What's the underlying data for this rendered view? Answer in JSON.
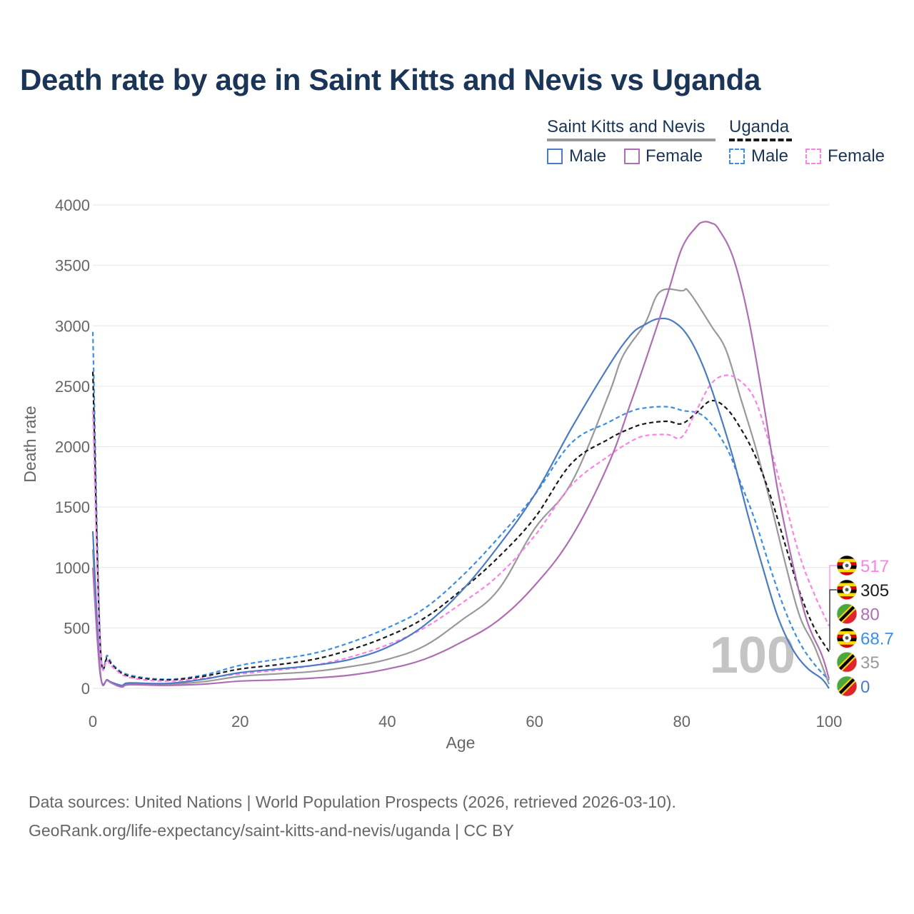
{
  "title": "Death rate by age in Saint Kitts and Nevis vs Uganda",
  "legend": {
    "group1": "Saint Kitts and Nevis",
    "group2": "Uganda",
    "male": "Male",
    "female": "Female"
  },
  "source": {
    "line1": "Data sources: United Nations | World Population Prospects (2026, retrieved 2026-03-10).",
    "line2": "GeoRank.org/life-expectancy/saint-kitts-and-nevis/uganda | CC BY"
  },
  "colors": {
    "title": "#1b3558",
    "skn_male": "#4a7bc4",
    "skn_female": "#b06db5",
    "skn_total": "#999999",
    "uga_male": "#3a8ee8",
    "uga_female": "#ff80e8",
    "uga_total": "#1a1a1a"
  },
  "chart_data": {
    "type": "line",
    "title": "Death rate by age in Saint Kitts and Nevis vs Uganda",
    "xlabel": "Age",
    "ylabel": "Death rate",
    "xlim": [
      0,
      100
    ],
    "ylim": [
      0,
      4000
    ],
    "xticks": [
      0,
      20,
      40,
      60,
      80,
      100
    ],
    "yticks": [
      0,
      500,
      1000,
      1500,
      2000,
      2500,
      3000,
      3500,
      4000
    ],
    "year_watermark": "100",
    "series": [
      {
        "name": "Saint Kitts and Nevis Total",
        "key": "skn_total",
        "dash": false,
        "points": [
          [
            0,
            1150
          ],
          [
            1,
            130
          ],
          [
            2,
            70
          ],
          [
            3,
            35
          ],
          [
            4,
            15
          ],
          [
            5,
            40
          ],
          [
            10,
            35
          ],
          [
            15,
            55
          ],
          [
            20,
            100
          ],
          [
            25,
            120
          ],
          [
            30,
            140
          ],
          [
            35,
            180
          ],
          [
            40,
            240
          ],
          [
            45,
            350
          ],
          [
            50,
            560
          ],
          [
            55,
            810
          ],
          [
            60,
            1320
          ],
          [
            65,
            1700
          ],
          [
            70,
            2420
          ],
          [
            72,
            2750
          ],
          [
            75,
            3020
          ],
          [
            77,
            3280
          ],
          [
            80,
            3290
          ],
          [
            81,
            3280
          ],
          [
            84,
            3000
          ],
          [
            86,
            2800
          ],
          [
            88,
            2400
          ],
          [
            90,
            2000
          ],
          [
            92,
            1550
          ],
          [
            94,
            1050
          ],
          [
            96,
            600
          ],
          [
            98,
            350
          ],
          [
            100,
            35
          ]
        ]
      },
      {
        "name": "Uganda Male",
        "key": "uga_male",
        "dash": true,
        "points": [
          [
            0,
            2950
          ],
          [
            1,
            400
          ],
          [
            2,
            270
          ],
          [
            3,
            180
          ],
          [
            5,
            110
          ],
          [
            10,
            75
          ],
          [
            15,
            110
          ],
          [
            20,
            190
          ],
          [
            25,
            240
          ],
          [
            30,
            290
          ],
          [
            35,
            380
          ],
          [
            40,
            500
          ],
          [
            45,
            660
          ],
          [
            50,
            920
          ],
          [
            55,
            1240
          ],
          [
            60,
            1600
          ],
          [
            65,
            2030
          ],
          [
            70,
            2200
          ],
          [
            73,
            2290
          ],
          [
            75,
            2320
          ],
          [
            78,
            2330
          ],
          [
            80,
            2300
          ],
          [
            83,
            2250
          ],
          [
            86,
            2000
          ],
          [
            88,
            1700
          ],
          [
            90,
            1380
          ],
          [
            92,
            1000
          ],
          [
            94,
            650
          ],
          [
            96,
            380
          ],
          [
            98,
            200
          ],
          [
            100,
            68.7
          ]
        ]
      },
      {
        "name": "Uganda Total",
        "key": "uga_total",
        "dash": true,
        "points": [
          [
            0,
            2620
          ],
          [
            1,
            370
          ],
          [
            2,
            250
          ],
          [
            3,
            170
          ],
          [
            5,
            100
          ],
          [
            10,
            70
          ],
          [
            15,
            100
          ],
          [
            20,
            160
          ],
          [
            25,
            195
          ],
          [
            30,
            240
          ],
          [
            35,
            320
          ],
          [
            40,
            430
          ],
          [
            45,
            580
          ],
          [
            50,
            810
          ],
          [
            55,
            1080
          ],
          [
            60,
            1410
          ],
          [
            65,
            1860
          ],
          [
            70,
            2060
          ],
          [
            73,
            2150
          ],
          [
            75,
            2190
          ],
          [
            78,
            2210
          ],
          [
            80,
            2190
          ],
          [
            82,
            2280
          ],
          [
            84,
            2380
          ],
          [
            86,
            2320
          ],
          [
            88,
            2150
          ],
          [
            90,
            1920
          ],
          [
            92,
            1600
          ],
          [
            94,
            1200
          ],
          [
            96,
            800
          ],
          [
            98,
            500
          ],
          [
            100,
            305
          ]
        ]
      },
      {
        "name": "Uganda Female",
        "key": "uga_female",
        "dash": true,
        "points": [
          [
            0,
            2300
          ],
          [
            1,
            340
          ],
          [
            2,
            230
          ],
          [
            3,
            160
          ],
          [
            5,
            90
          ],
          [
            10,
            60
          ],
          [
            15,
            85
          ],
          [
            20,
            120
          ],
          [
            25,
            150
          ],
          [
            30,
            190
          ],
          [
            35,
            260
          ],
          [
            40,
            360
          ],
          [
            45,
            500
          ],
          [
            50,
            700
          ],
          [
            55,
            930
          ],
          [
            60,
            1260
          ],
          [
            65,
            1680
          ],
          [
            70,
            1920
          ],
          [
            73,
            2040
          ],
          [
            75,
            2090
          ],
          [
            78,
            2100
          ],
          [
            80,
            2080
          ],
          [
            82,
            2300
          ],
          [
            84,
            2520
          ],
          [
            86,
            2590
          ],
          [
            88,
            2540
          ],
          [
            90,
            2380
          ],
          [
            92,
            2000
          ],
          [
            94,
            1550
          ],
          [
            96,
            1100
          ],
          [
            98,
            780
          ],
          [
            100,
            517
          ]
        ]
      },
      {
        "name": "Saint Kitts and Nevis Male",
        "key": "skn_male",
        "dash": false,
        "points": [
          [
            0,
            1300
          ],
          [
            1,
            140
          ],
          [
            2,
            70
          ],
          [
            3,
            40
          ],
          [
            4,
            25
          ],
          [
            5,
            45
          ],
          [
            10,
            40
          ],
          [
            15,
            75
          ],
          [
            20,
            130
          ],
          [
            25,
            160
          ],
          [
            30,
            190
          ],
          [
            35,
            240
          ],
          [
            40,
            340
          ],
          [
            45,
            520
          ],
          [
            50,
            800
          ],
          [
            55,
            1170
          ],
          [
            60,
            1600
          ],
          [
            65,
            2150
          ],
          [
            70,
            2660
          ],
          [
            73,
            2920
          ],
          [
            75,
            3010
          ],
          [
            77,
            3060
          ],
          [
            79,
            3030
          ],
          [
            81,
            2900
          ],
          [
            83,
            2650
          ],
          [
            85,
            2300
          ],
          [
            87,
            1900
          ],
          [
            89,
            1430
          ],
          [
            91,
            1000
          ],
          [
            93,
            600
          ],
          [
            95,
            330
          ],
          [
            97,
            170
          ],
          [
            99,
            80
          ],
          [
            100,
            0
          ]
        ]
      },
      {
        "name": "Saint Kitts and Nevis Female",
        "key": "skn_female",
        "dash": false,
        "points": [
          [
            0,
            1000
          ],
          [
            1,
            120
          ],
          [
            2,
            65
          ],
          [
            3,
            30
          ],
          [
            4,
            12
          ],
          [
            5,
            30
          ],
          [
            10,
            25
          ],
          [
            15,
            35
          ],
          [
            20,
            60
          ],
          [
            25,
            70
          ],
          [
            30,
            85
          ],
          [
            35,
            110
          ],
          [
            40,
            160
          ],
          [
            45,
            240
          ],
          [
            50,
            380
          ],
          [
            55,
            560
          ],
          [
            60,
            850
          ],
          [
            65,
            1250
          ],
          [
            70,
            1850
          ],
          [
            73,
            2350
          ],
          [
            75,
            2700
          ],
          [
            78,
            3250
          ],
          [
            80,
            3640
          ],
          [
            82,
            3820
          ],
          [
            83,
            3860
          ],
          [
            84,
            3850
          ],
          [
            85,
            3800
          ],
          [
            87,
            3560
          ],
          [
            89,
            3080
          ],
          [
            91,
            2400
          ],
          [
            93,
            1650
          ],
          [
            95,
            1050
          ],
          [
            97,
            560
          ],
          [
            99,
            280
          ],
          [
            100,
            80
          ]
        ]
      }
    ],
    "end_labels": [
      {
        "value": "517",
        "flag": "uganda",
        "key": "uga_female"
      },
      {
        "value": "305",
        "flag": "uganda",
        "key": "uga_total"
      },
      {
        "value": "80",
        "flag": "skn",
        "key": "skn_female"
      },
      {
        "value": "68.7",
        "flag": "uganda",
        "key": "uga_male"
      },
      {
        "value": "35",
        "flag": "skn",
        "key": "skn_total"
      },
      {
        "value": "0",
        "flag": "skn",
        "key": "skn_male"
      }
    ]
  }
}
